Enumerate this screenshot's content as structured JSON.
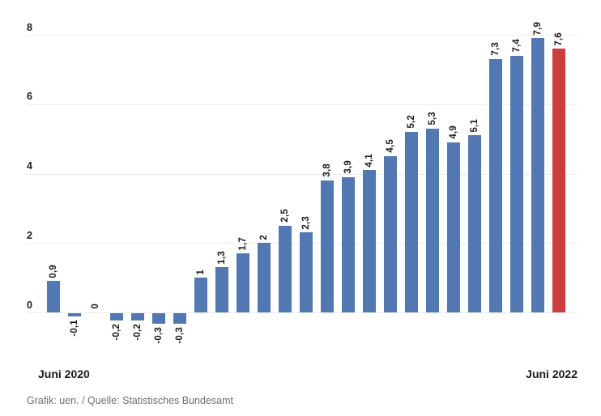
{
  "chart_data": {
    "type": "bar",
    "title": "",
    "x_start_label": "Juni 2020",
    "x_end_label": "Juni 2022",
    "yticks": [
      0,
      2,
      4,
      6,
      8
    ],
    "ylim": [
      -0.5,
      8
    ],
    "grid": true,
    "legend": false,
    "values": [
      0.9,
      -0.1,
      0,
      -0.2,
      -0.2,
      -0.3,
      -0.3,
      1,
      1.3,
      1.7,
      2,
      2.5,
      2.3,
      3.8,
      3.9,
      4.1,
      4.5,
      5.2,
      5.3,
      4.9,
      5.1,
      7.3,
      7.4,
      7.9,
      7.6
    ],
    "bar_labels": [
      "0,9",
      "-0,1",
      "0",
      "-0,2",
      "-0,2",
      "-0,3",
      "-0,3",
      "1",
      "1,3",
      "1,7",
      "2",
      "2,5",
      "2,3",
      "3,8",
      "3,9",
      "4,1",
      "4,5",
      "5,2",
      "5,3",
      "4,9",
      "5,1",
      "7,3",
      "7,4",
      "7,9",
      "7,6"
    ],
    "highlight_index": 24,
    "footer": "Grafik: uen. / Quelle: Statistisches Bundesamt",
    "colors": {
      "bar": "#5278b4",
      "highlight": "#cf3c3e",
      "gridline": "#ececec",
      "text": "#1a1a1a",
      "footer_text": "#6e6e6e"
    }
  }
}
